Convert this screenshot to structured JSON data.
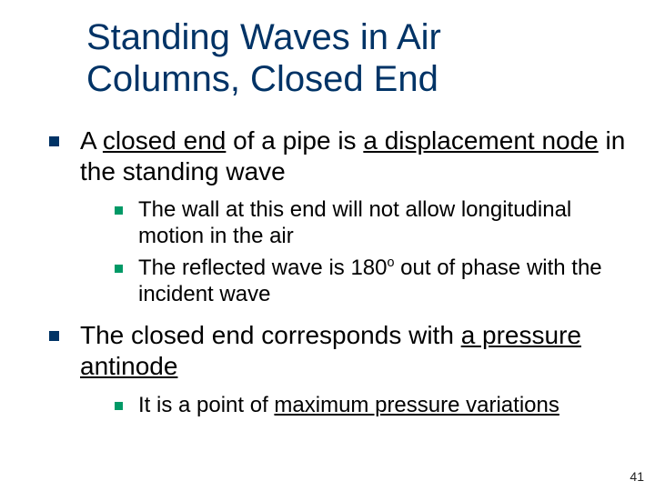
{
  "title_fontsize": 40,
  "title_color": "#003366",
  "bullet_lvl1_color": "#003366",
  "bullet_lvl2_color": "#009966",
  "text_color": "#000000",
  "page_number": "41",
  "title_lines": [
    "Standing Waves in Air",
    "Columns, Closed End"
  ],
  "b1_pre": "A ",
  "b1_u1": "closed end",
  "b1_mid": " of a pipe is ",
  "b1_u2": "a displacement node",
  "b1_post": " in the standing wave",
  "b1s1": "The wall at this end will not allow longitudinal motion in the air",
  "b1s2_pre": "The reflected wave is 180",
  "b1s2_sup": "o",
  "b1s2_post": " out of phase with the incident wave",
  "b2_pre": "The closed end corresponds with ",
  "b2_u1": "a pressure antinode",
  "b2s1_pre": "It is a point of ",
  "b2s1_u1": "maximum pressure variations"
}
